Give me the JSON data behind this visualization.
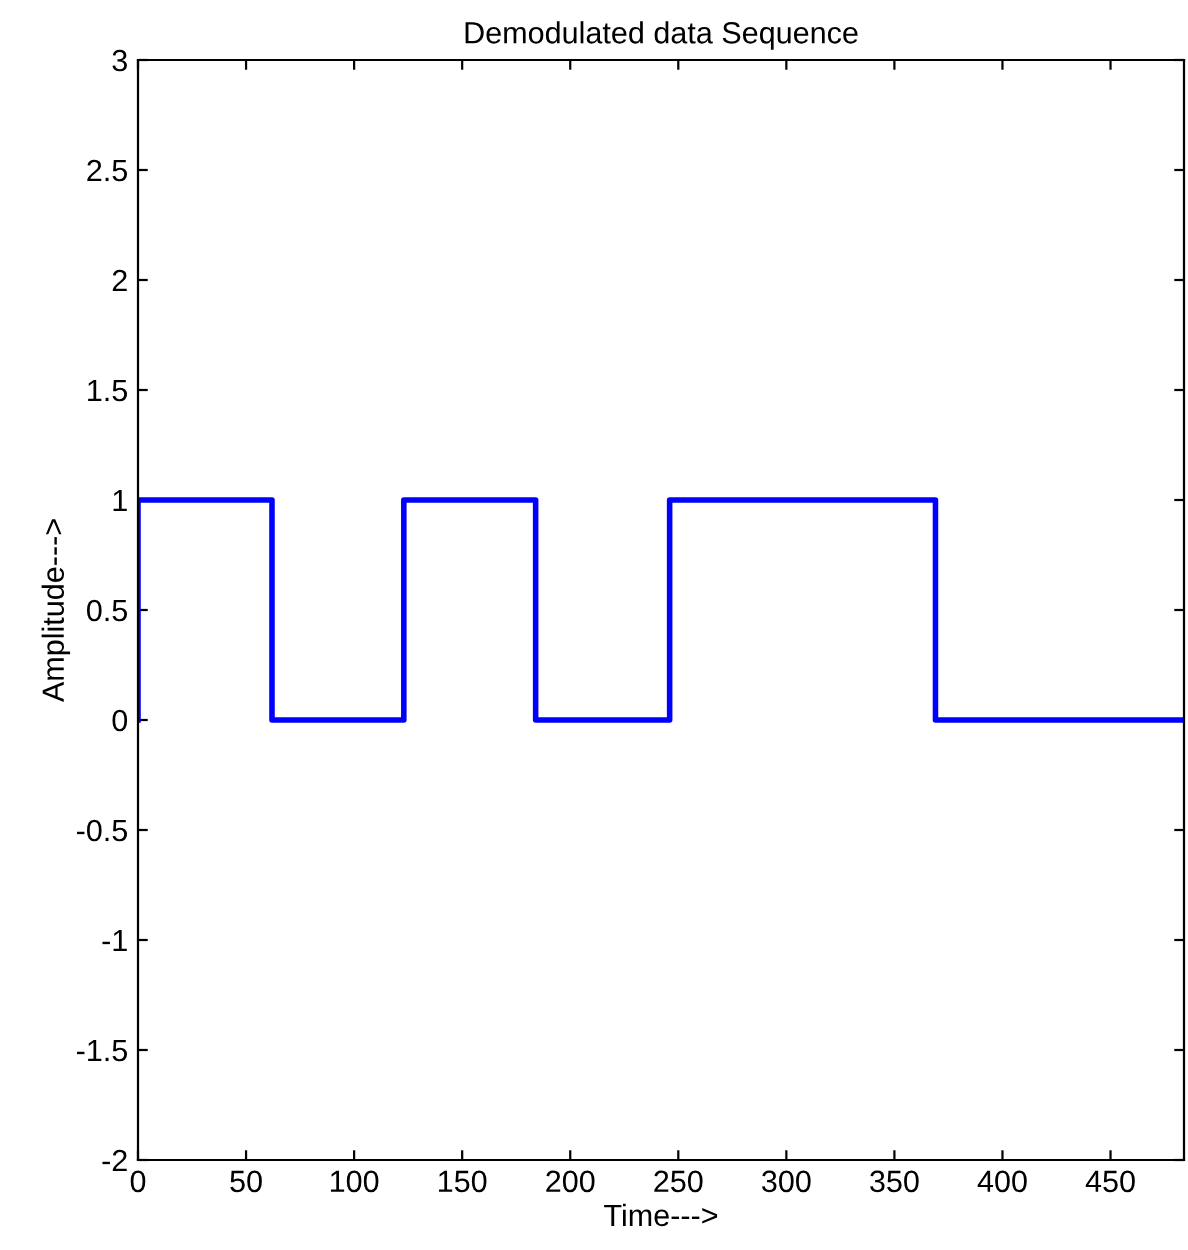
{
  "chart_data": {
    "type": "step",
    "title": "Demodulated data Sequence",
    "xlabel": "Time--->",
    "ylabel": "Amplitude--->",
    "x": [
      0,
      0,
      62,
      123,
      184,
      246,
      369,
      484
    ],
    "series": [
      {
        "color": "#0000ff",
        "values": [
          0,
          1,
          0,
          1,
          0,
          1,
          0,
          0
        ]
      }
    ],
    "xlim": [
      0,
      484
    ],
    "xticks": [
      0,
      50,
      100,
      150,
      200,
      250,
      300,
      350,
      400,
      450
    ],
    "ylim": [
      -2,
      3
    ],
    "yticks": [
      -2,
      -1.5,
      -1,
      -0.5,
      0,
      0.5,
      1,
      1.5,
      2,
      2.5,
      3
    ],
    "grid": false,
    "legend": false,
    "marker": "none",
    "line_style": "solid"
  }
}
